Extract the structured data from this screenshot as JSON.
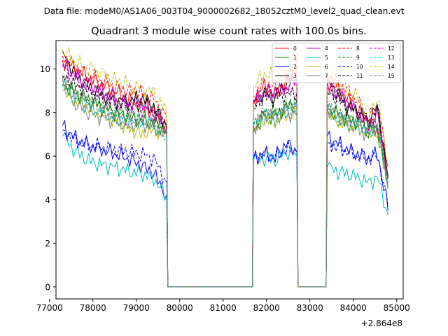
{
  "chart_data": {
    "type": "line",
    "suptitle": "Data file: modeM0/AS1A06_003T04_9000002682_18052cztM0_level2_quad_clean.evt",
    "title": "Quadrant 3 module wise count rates with 100.0s bins.",
    "xlabel": "",
    "ylabel": "",
    "x_offset_label": "+2.864e8",
    "xlim": [
      77150,
      85150
    ],
    "ylim": [
      -0.55,
      11.3
    ],
    "xticks": [
      77000,
      78000,
      79000,
      80000,
      81000,
      82000,
      83000,
      84000,
      85000
    ],
    "xtick_labels": [
      "77000",
      "78000",
      "79000",
      "80000",
      "81000",
      "82000",
      "83000",
      "84000",
      "85000"
    ],
    "yticks": [
      0,
      2,
      4,
      6,
      8,
      10
    ],
    "ytick_labels": [
      "0",
      "2",
      "4",
      "6",
      "8",
      "10"
    ],
    "legend_position": "upper right",
    "segments": [
      {
        "start": 77300,
        "end": 79700,
        "step": 50
      },
      {
        "start": 81700,
        "end": 82700,
        "step": 50
      },
      {
        "start": 83400,
        "end": 84800,
        "step": 50
      }
    ],
    "series": [
      {
        "name": "0",
        "color": "#ff0000",
        "dash": "solid",
        "seg_values": [
          [
            10.4,
            10.0,
            9.6,
            9.3,
            9.0,
            8.6,
            8.3,
            8.0,
            7.2
          ],
          [
            8.6,
            9.2,
            8.8,
            9.3,
            10.2
          ],
          [
            9.4,
            9.1,
            8.6,
            8.1,
            7.6,
            7.2,
            5.2
          ]
        ]
      },
      {
        "name": "1",
        "color": "#008000",
        "dash": "solid",
        "seg_values": [
          [
            9.3,
            8.9,
            8.6,
            8.3,
            8.0,
            7.8,
            7.6,
            7.5,
            7.2
          ],
          [
            7.2,
            7.8,
            7.9,
            8.2,
            8.6
          ],
          [
            8.2,
            7.9,
            7.7,
            7.5,
            7.1,
            7.2,
            4.5
          ]
        ]
      },
      {
        "name": "2",
        "color": "#0000ff",
        "dash": "solid",
        "seg_values": [
          [
            7.4,
            6.8,
            6.5,
            6.3,
            6.1,
            5.9,
            5.6,
            5.2,
            4.2
          ],
          [
            5.9,
            6.1,
            5.9,
            6.6,
            6.2
          ],
          [
            6.9,
            6.6,
            6.3,
            6.1,
            5.9,
            6.1,
            3.5
          ]
        ]
      },
      {
        "name": "3",
        "color": "#000000",
        "dash": "solid",
        "seg_values": [
          [
            10.8,
            9.7,
            9.2,
            8.8,
            8.6,
            8.5,
            8.7,
            8.3,
            7.4
          ],
          [
            8.5,
            8.9,
            8.7,
            9.4,
            9.5
          ],
          [
            9.5,
            8.9,
            8.3,
            8.1,
            7.6,
            8.3,
            5.0
          ]
        ]
      },
      {
        "name": "4",
        "color": "#bf00bf",
        "dash": "solid",
        "seg_values": [
          [
            10.2,
            9.7,
            9.3,
            9.0,
            8.6,
            8.4,
            8.5,
            8.0,
            7.1
          ],
          [
            8.5,
            8.9,
            9.0,
            9.1,
            9.6
          ],
          [
            9.2,
            8.8,
            8.4,
            8.0,
            7.4,
            7.9,
            5.0
          ]
        ]
      },
      {
        "name": "5",
        "color": "#00bfbf",
        "dash": "solid",
        "seg_values": [
          [
            6.9,
            6.2,
            5.8,
            5.6,
            5.5,
            5.3,
            5.2,
            5.0,
            4.1
          ],
          [
            5.8,
            5.9,
            5.8,
            6.2,
            6.0
          ],
          [
            5.5,
            5.3,
            5.2,
            5.0,
            4.8,
            5.0,
            3.3
          ]
        ]
      },
      {
        "name": "6",
        "color": "#bfbf00",
        "dash": "solid",
        "seg_values": [
          [
            9.0,
            8.5,
            8.2,
            7.9,
            7.6,
            7.3,
            7.0,
            7.2,
            7.0
          ],
          [
            7.1,
            7.7,
            7.6,
            7.9,
            7.8
          ],
          [
            8.0,
            7.6,
            7.4,
            7.3,
            7.0,
            7.1,
            4.6
          ]
        ]
      },
      {
        "name": "7",
        "color": "#808080",
        "dash": "solid",
        "seg_values": [
          [
            9.6,
            8.4,
            8.0,
            7.8,
            7.6,
            7.4,
            7.5,
            7.3,
            6.9
          ],
          [
            7.3,
            7.9,
            7.8,
            8.0,
            7.9
          ],
          [
            8.2,
            7.8,
            7.5,
            7.4,
            7.0,
            7.4,
            4.7
          ]
        ]
      },
      {
        "name": "8",
        "color": "#ff0000",
        "dash": "dashed",
        "seg_values": [
          [
            10.6,
            10.1,
            9.7,
            9.5,
            9.2,
            9.0,
            8.9,
            8.6,
            7.8
          ],
          [
            8.8,
            9.4,
            9.1,
            9.4,
            10.6
          ],
          [
            9.7,
            9.4,
            9.0,
            8.5,
            7.6,
            8.3,
            5.5
          ]
        ]
      },
      {
        "name": "9",
        "color": "#008000",
        "dash": "dashed",
        "seg_values": [
          [
            9.6,
            8.9,
            8.5,
            8.2,
            8.0,
            7.9,
            7.8,
            7.6,
            7.2
          ],
          [
            7.4,
            8.0,
            8.0,
            8.2,
            8.6
          ],
          [
            8.3,
            8.0,
            7.8,
            7.6,
            7.3,
            7.4,
            4.8
          ]
        ]
      },
      {
        "name": "10",
        "color": "#0000ff",
        "dash": "dashed",
        "seg_values": [
          [
            7.2,
            6.7,
            6.5,
            6.4,
            6.3,
            6.2,
            6.1,
            5.9,
            4.8
          ],
          [
            6.0,
            6.1,
            6.0,
            6.3,
            6.2
          ],
          [
            6.6,
            6.4,
            6.2,
            6.0,
            5.9,
            6.0,
            3.7
          ]
        ]
      },
      {
        "name": "11",
        "color": "#000000",
        "dash": "dashed",
        "seg_values": [
          [
            9.7,
            9.2,
            8.9,
            8.6,
            8.4,
            8.3,
            8.4,
            8.1,
            7.4
          ],
          [
            8.2,
            8.7,
            8.6,
            8.8,
            8.9
          ],
          [
            9.0,
            8.6,
            8.2,
            8.0,
            7.6,
            8.1,
            5.1
          ]
        ]
      },
      {
        "name": "12",
        "color": "#bf00bf",
        "dash": "dashed",
        "seg_values": [
          [
            10.1,
            9.5,
            9.1,
            8.8,
            8.5,
            8.3,
            8.2,
            8.0,
            7.3
          ],
          [
            8.4,
            8.9,
            8.8,
            9.1,
            9.5
          ],
          [
            9.3,
            8.9,
            8.5,
            8.1,
            7.5,
            8.0,
            5.1
          ]
        ]
      },
      {
        "name": "13",
        "color": "#00bfbf",
        "dash": "dashed",
        "seg_values": [
          [
            9.2,
            8.6,
            8.3,
            8.0,
            7.8,
            7.6,
            7.6,
            7.4,
            6.9
          ],
          [
            7.3,
            7.9,
            7.8,
            8.1,
            8.1
          ],
          [
            8.1,
            7.8,
            7.6,
            7.4,
            7.1,
            7.3,
            4.6
          ]
        ]
      },
      {
        "name": "14",
        "color": "#bfbf00",
        "dash": "dashed",
        "seg_values": [
          [
            10.9,
            10.3,
            10.0,
            9.8,
            9.5,
            9.3,
            9.1,
            8.9,
            8.0
          ],
          [
            9.2,
            9.8,
            9.6,
            9.9,
            10.8
          ],
          [
            9.8,
            9.5,
            9.0,
            8.7,
            8.0,
            8.6,
            5.6
          ]
        ]
      },
      {
        "name": "15",
        "color": "#808080",
        "dash": "dashed",
        "seg_values": [
          [
            9.5,
            8.9,
            8.5,
            8.2,
            7.9,
            7.7,
            7.7,
            7.4,
            7.0
          ],
          [
            7.4,
            8.0,
            7.9,
            8.1,
            8.2
          ],
          [
            8.3,
            7.9,
            7.6,
            7.5,
            7.1,
            7.4,
            4.7
          ]
        ]
      }
    ]
  }
}
